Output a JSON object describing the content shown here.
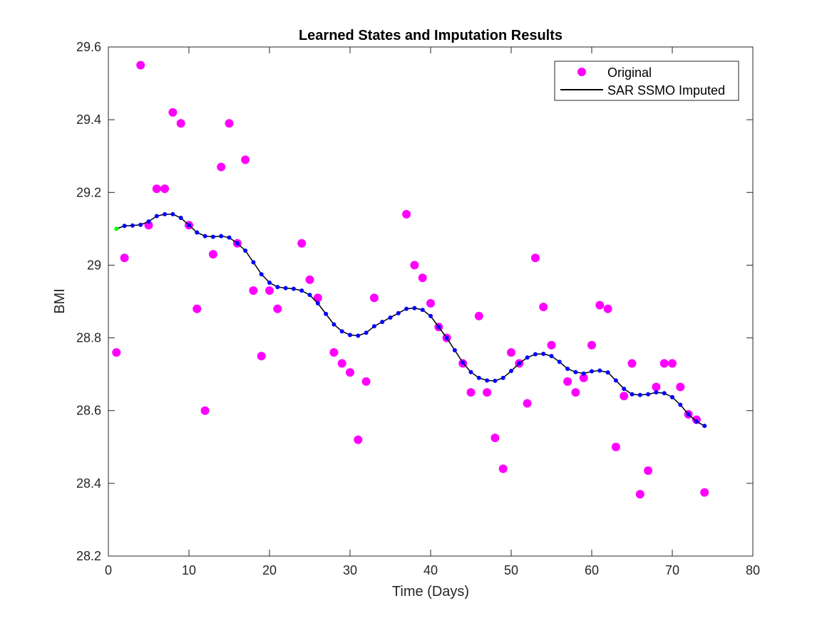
{
  "chart_data": {
    "type": "scatter",
    "title": "Learned States and Imputation Results",
    "xlabel": "Time (Days)",
    "ylabel": "BMI",
    "xlim": [
      0,
      80
    ],
    "ylim": [
      28.2,
      29.6
    ],
    "xticks": [
      0,
      10,
      20,
      30,
      40,
      50,
      60,
      70,
      80
    ],
    "xtick_labels": [
      "0",
      "10",
      "20",
      "30",
      "40",
      "50",
      "60",
      "70",
      "80"
    ],
    "yticks": [
      28.2,
      28.4,
      28.6,
      28.8,
      29,
      29.2,
      29.4,
      29.6
    ],
    "ytick_labels": [
      "28.2",
      "28.4",
      "28.6",
      "28.8",
      "29",
      "29.2",
      "29.4",
      "29.6"
    ],
    "grid": false,
    "legend_position": "top-right",
    "series": [
      {
        "name": "Original",
        "kind": "markers",
        "color": "#ff00ff",
        "x": [
          1,
          2,
          4,
          5,
          6,
          7,
          8,
          9,
          10,
          11,
          12,
          13,
          14,
          15,
          16,
          17,
          18,
          19,
          20,
          21,
          24,
          25,
          26,
          28,
          29,
          30,
          31,
          32,
          33,
          37,
          38,
          39,
          40,
          41,
          42,
          44,
          45,
          46,
          47,
          48,
          49,
          50,
          51,
          52,
          53,
          54,
          55,
          57,
          58,
          59,
          60,
          61,
          62,
          63,
          64,
          65,
          66,
          67,
          68,
          69,
          70,
          71,
          72,
          73,
          74
        ],
        "y": [
          28.76,
          29.02,
          29.55,
          29.11,
          29.21,
          29.21,
          29.42,
          29.39,
          29.11,
          28.88,
          28.6,
          29.03,
          29.27,
          29.39,
          29.06,
          29.29,
          28.93,
          28.75,
          28.93,
          28.88,
          29.06,
          28.96,
          28.91,
          28.76,
          28.73,
          28.705,
          28.52,
          28.68,
          28.91,
          29.14,
          29.0,
          28.965,
          28.895,
          28.83,
          28.8,
          28.73,
          28.65,
          28.86,
          28.65,
          28.525,
          28.44,
          28.76,
          28.73,
          28.62,
          29.02,
          28.885,
          28.78,
          28.68,
          28.65,
          28.69,
          28.78,
          28.89,
          28.88,
          28.5,
          28.64,
          28.73,
          28.37,
          28.435,
          28.665,
          28.73,
          28.73,
          28.665,
          28.59,
          28.575,
          28.375
        ]
      },
      {
        "name": "SAR SSMO Imputed",
        "kind": "line",
        "color": "#000000",
        "x": [
          1,
          2,
          3,
          4,
          5,
          6,
          7,
          8,
          9,
          10,
          11,
          12,
          13,
          14,
          15,
          16,
          17,
          18,
          19,
          20,
          21,
          22,
          23,
          24,
          25,
          26,
          27,
          28,
          29,
          30,
          31,
          32,
          33,
          34,
          35,
          36,
          37,
          38,
          39,
          40,
          41,
          42,
          43,
          44,
          45,
          46,
          47,
          48,
          49,
          50,
          51,
          52,
          53,
          54,
          55,
          56,
          57,
          58,
          59,
          60,
          61,
          62,
          63,
          64,
          65,
          66,
          67,
          68,
          69,
          70,
          71,
          72,
          73,
          74
        ],
        "y": [
          29.1,
          29.108,
          29.109,
          29.111,
          29.12,
          29.135,
          29.14,
          29.14,
          29.13,
          29.11,
          29.09,
          29.08,
          29.078,
          29.08,
          29.076,
          29.06,
          29.04,
          29.008,
          28.975,
          28.952,
          28.94,
          28.937,
          28.935,
          28.93,
          28.918,
          28.895,
          28.866,
          28.837,
          28.818,
          28.808,
          28.806,
          28.814,
          28.832,
          28.844,
          28.856,
          28.868,
          28.88,
          28.882,
          28.877,
          28.86,
          28.83,
          28.8,
          28.766,
          28.732,
          28.706,
          28.69,
          28.683,
          28.682,
          28.69,
          28.709,
          28.73,
          28.746,
          28.755,
          28.756,
          28.75,
          28.734,
          28.715,
          28.706,
          28.702,
          28.708,
          28.71,
          28.705,
          28.683,
          28.66,
          28.645,
          28.643,
          28.645,
          28.65,
          28.648,
          28.637,
          28.616,
          28.59,
          28.57,
          28.558
        ]
      },
      {
        "name": "Learned states",
        "kind": "markers",
        "color": "#0000ff",
        "first_point_color": "#00ff00"
      }
    ]
  }
}
